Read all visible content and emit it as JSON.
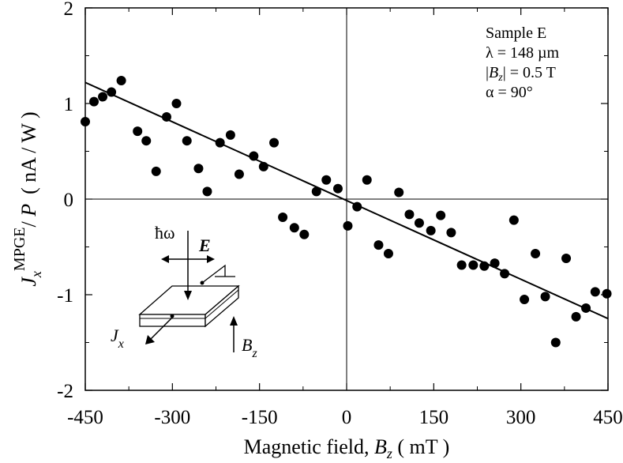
{
  "chart_data": {
    "type": "scatter",
    "x_range": [
      -450,
      450
    ],
    "y_range": [
      -2,
      2
    ],
    "x_ticks": [
      "-450",
      "-300",
      "-150",
      "0",
      "150",
      "300",
      "450"
    ],
    "y_ticks": [
      "2",
      "1",
      "0",
      "-1",
      "-2"
    ],
    "xlabel": "Magnetic field, ",
    "xlabel_var": "B",
    "xlabel_sub": "z",
    "xlabel_unit": " ( mT )",
    "ylabel_var": "J",
    "ylabel_sub": "x",
    "ylabel_sup": "MPGE",
    "ylabel_div": "/ ",
    "ylabel_p": "P",
    "ylabel_unit": "( nA / W )",
    "annotations": {
      "sample": "Sample E",
      "lambda": "λ = 148 µm",
      "bz_pre": "|",
      "bz_var": "B",
      "bz_sub": "z",
      "bz_post": "| = 0.5 T",
      "alpha": "α = 90°"
    },
    "inset": {
      "hw": "ħω",
      "e": "E",
      "jx_var": "J",
      "jx_sub": "x",
      "bz_var": "B",
      "bz_sub": "z"
    },
    "fit_line": {
      "x": [
        -450,
        450
      ],
      "y": [
        1.22,
        -1.25
      ]
    },
    "points": [
      [
        -450,
        0.81
      ],
      [
        -435,
        1.02
      ],
      [
        -420,
        1.07
      ],
      [
        -405,
        1.12
      ],
      [
        -388,
        1.24
      ],
      [
        -360,
        0.71
      ],
      [
        -345,
        0.61
      ],
      [
        -328,
        0.29
      ],
      [
        -310,
        0.86
      ],
      [
        -293,
        1.0
      ],
      [
        -275,
        0.61
      ],
      [
        -255,
        0.32
      ],
      [
        -240,
        0.08
      ],
      [
        -218,
        0.59
      ],
      [
        -200,
        0.67
      ],
      [
        -185,
        0.26
      ],
      [
        -160,
        0.45
      ],
      [
        -143,
        0.34
      ],
      [
        -125,
        0.59
      ],
      [
        -110,
        -0.19
      ],
      [
        -90,
        -0.3
      ],
      [
        -73,
        -0.37
      ],
      [
        -52,
        0.08
      ],
      [
        -35,
        0.2
      ],
      [
        -15,
        0.11
      ],
      [
        2,
        -0.28
      ],
      [
        18,
        -0.08
      ],
      [
        35,
        0.2
      ],
      [
        55,
        -0.48
      ],
      [
        72,
        -0.57
      ],
      [
        90,
        0.07
      ],
      [
        108,
        -0.16
      ],
      [
        125,
        -0.25
      ],
      [
        145,
        -0.33
      ],
      [
        162,
        -0.17
      ],
      [
        180,
        -0.35
      ],
      [
        198,
        -0.69
      ],
      [
        218,
        -0.69
      ],
      [
        237,
        -0.7
      ],
      [
        255,
        -0.67
      ],
      [
        272,
        -0.78
      ],
      [
        288,
        -0.22
      ],
      [
        306,
        -1.05
      ],
      [
        325,
        -0.57
      ],
      [
        342,
        -1.02
      ],
      [
        360,
        -1.5
      ],
      [
        378,
        -0.62
      ],
      [
        395,
        -1.23
      ],
      [
        412,
        -1.14
      ],
      [
        428,
        -0.97
      ],
      [
        448,
        -0.99
      ]
    ]
  }
}
